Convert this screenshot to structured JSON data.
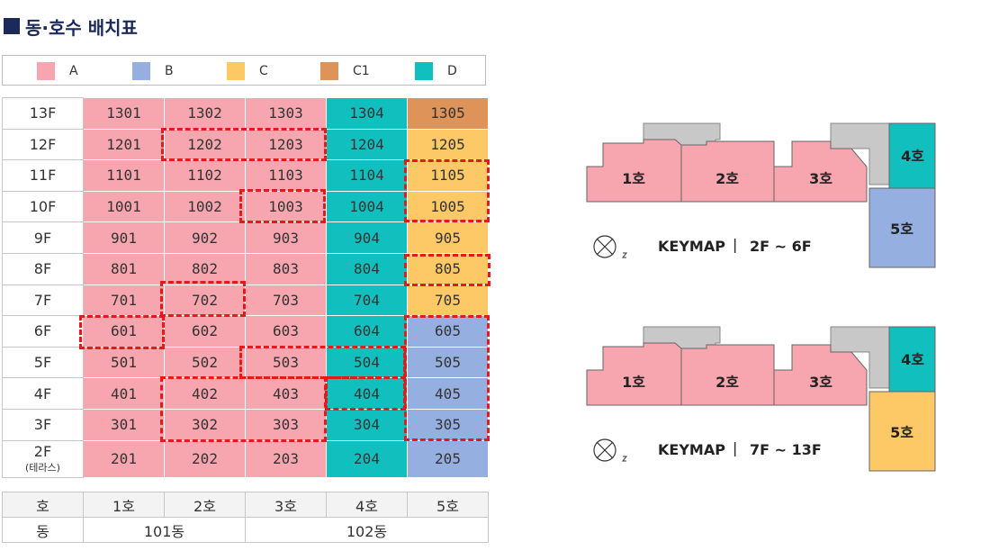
{
  "title": "동·호수 배치표",
  "legend": [
    {
      "label": "A",
      "color": "#f7a5ae"
    },
    {
      "label": "B",
      "color": "#95afe0"
    },
    {
      "label": "C",
      "color": "#fdc866"
    },
    {
      "label": "C1",
      "color": "#de9358"
    },
    {
      "label": "D",
      "color": "#12bfbf"
    }
  ],
  "floors": [
    {
      "floor": "13F",
      "units": [
        {
          "n": "1301",
          "t": "A"
        },
        {
          "n": "1302",
          "t": "A"
        },
        {
          "n": "1303",
          "t": "A"
        },
        {
          "n": "1304",
          "t": "D"
        },
        {
          "n": "1305",
          "t": "C1"
        }
      ]
    },
    {
      "floor": "12F",
      "units": [
        {
          "n": "1201",
          "t": "A"
        },
        {
          "n": "1202",
          "t": "A"
        },
        {
          "n": "1203",
          "t": "A"
        },
        {
          "n": "1204",
          "t": "D"
        },
        {
          "n": "1205",
          "t": "C"
        }
      ]
    },
    {
      "floor": "11F",
      "units": [
        {
          "n": "1101",
          "t": "A"
        },
        {
          "n": "1102",
          "t": "A"
        },
        {
          "n": "1103",
          "t": "A"
        },
        {
          "n": "1104",
          "t": "D"
        },
        {
          "n": "1105",
          "t": "C"
        }
      ]
    },
    {
      "floor": "10F",
      "units": [
        {
          "n": "1001",
          "t": "A"
        },
        {
          "n": "1002",
          "t": "A"
        },
        {
          "n": "1003",
          "t": "A"
        },
        {
          "n": "1004",
          "t": "D"
        },
        {
          "n": "1005",
          "t": "C"
        }
      ]
    },
    {
      "floor": "9F",
      "units": [
        {
          "n": "901",
          "t": "A"
        },
        {
          "n": "902",
          "t": "A"
        },
        {
          "n": "903",
          "t": "A"
        },
        {
          "n": "904",
          "t": "D"
        },
        {
          "n": "905",
          "t": "C"
        }
      ]
    },
    {
      "floor": "8F",
      "units": [
        {
          "n": "801",
          "t": "A"
        },
        {
          "n": "802",
          "t": "A"
        },
        {
          "n": "803",
          "t": "A"
        },
        {
          "n": "804",
          "t": "D"
        },
        {
          "n": "805",
          "t": "C"
        }
      ]
    },
    {
      "floor": "7F",
      "units": [
        {
          "n": "701",
          "t": "A"
        },
        {
          "n": "702",
          "t": "A"
        },
        {
          "n": "703",
          "t": "A"
        },
        {
          "n": "704",
          "t": "D"
        },
        {
          "n": "705",
          "t": "C"
        }
      ]
    },
    {
      "floor": "6F",
      "units": [
        {
          "n": "601",
          "t": "A"
        },
        {
          "n": "602",
          "t": "A"
        },
        {
          "n": "603",
          "t": "A"
        },
        {
          "n": "604",
          "t": "D"
        },
        {
          "n": "605",
          "t": "B"
        }
      ]
    },
    {
      "floor": "5F",
      "units": [
        {
          "n": "501",
          "t": "A"
        },
        {
          "n": "502",
          "t": "A"
        },
        {
          "n": "503",
          "t": "A"
        },
        {
          "n": "504",
          "t": "D"
        },
        {
          "n": "505",
          "t": "B"
        }
      ]
    },
    {
      "floor": "4F",
      "units": [
        {
          "n": "401",
          "t": "A"
        },
        {
          "n": "402",
          "t": "A"
        },
        {
          "n": "403",
          "t": "A"
        },
        {
          "n": "404",
          "t": "D"
        },
        {
          "n": "405",
          "t": "B"
        }
      ]
    },
    {
      "floor": "3F",
      "units": [
        {
          "n": "301",
          "t": "A"
        },
        {
          "n": "302",
          "t": "A"
        },
        {
          "n": "303",
          "t": "A"
        },
        {
          "n": "304",
          "t": "D"
        },
        {
          "n": "305",
          "t": "B"
        }
      ]
    },
    {
      "floor": "2F",
      "sub": "(테라스)",
      "units": [
        {
          "n": "201",
          "t": "A"
        },
        {
          "n": "202",
          "t": "A"
        },
        {
          "n": "203",
          "t": "A"
        },
        {
          "n": "204",
          "t": "D"
        },
        {
          "n": "205",
          "t": "B"
        }
      ]
    }
  ],
  "footer": {
    "ho_label": "호",
    "ho": [
      "1호",
      "2호",
      "3호",
      "4호",
      "5호"
    ],
    "dong_label": "동",
    "dong": [
      "101동",
      "102동"
    ]
  },
  "keymaps": [
    {
      "label": "KEYMAP",
      "range": "2F ~ 6F",
      "units": [
        "1호",
        "2호",
        "3호",
        "4호",
        "5호"
      ]
    },
    {
      "label": "KEYMAP",
      "range": "7F ~ 13F",
      "units": [
        "1호",
        "2호",
        "3호",
        "4호",
        "5호"
      ]
    }
  ]
}
